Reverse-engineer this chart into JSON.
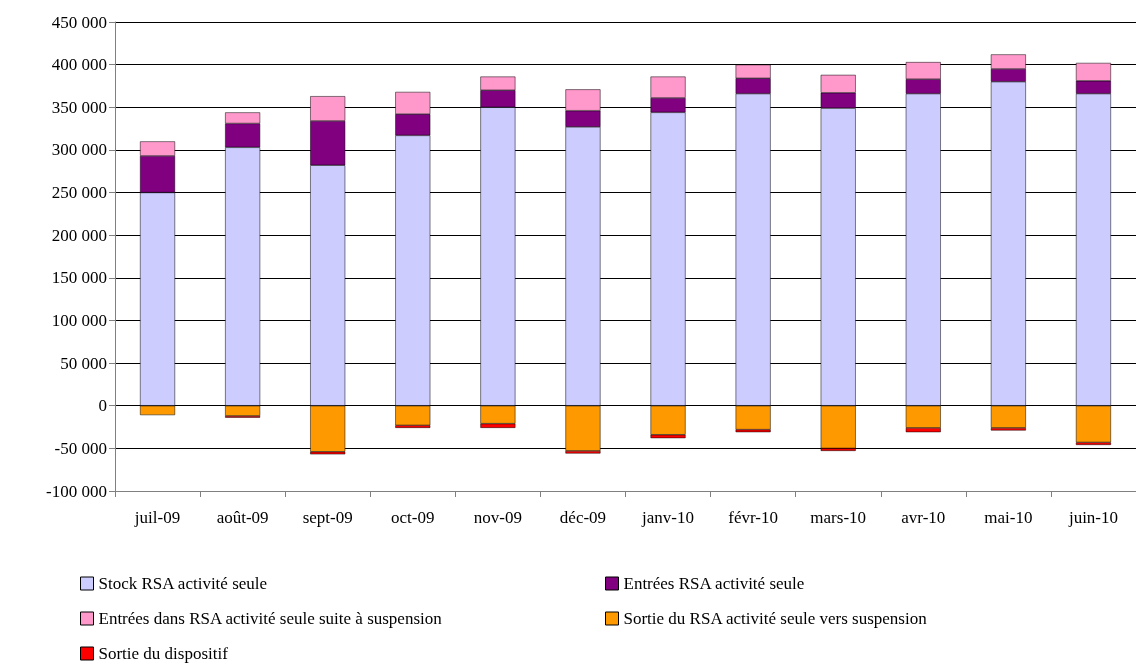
{
  "chart_data": {
    "type": "bar",
    "stacked": true,
    "categories": [
      "juil-09",
      "août-09",
      "sept-09",
      "oct-09",
      "nov-09",
      "déc-09",
      "janv-10",
      "févr-10",
      "mars-10",
      "avr-10",
      "mai-10",
      "juin-10"
    ],
    "series": [
      {
        "name": "Stock RSA activité seule",
        "color": "#ccccff",
        "values": [
          250000,
          303000,
          282000,
          317000,
          350000,
          327000,
          344000,
          366000,
          349000,
          366000,
          380000,
          366000
        ]
      },
      {
        "name": "Entrées RSA activité seule",
        "color": "#800080",
        "values": [
          43000,
          28000,
          52000,
          25000,
          20000,
          19000,
          17000,
          18000,
          18000,
          17000,
          15000,
          15000
        ]
      },
      {
        "name": "Entrées dans RSA activité seule suite à suspension",
        "color": "#ff99cc",
        "values": [
          17000,
          13000,
          29000,
          26000,
          16000,
          25000,
          25000,
          16000,
          21000,
          20000,
          17000,
          21000
        ]
      },
      {
        "name": "Sortie du RSA activité seule vers suspension",
        "color": "#ff9900",
        "values": [
          -11000,
          -12000,
          -54000,
          -23000,
          -21000,
          -53000,
          -34000,
          -28000,
          -50000,
          -26000,
          -26000,
          -43000
        ]
      },
      {
        "name": "Sortie du dispositif",
        "color": "#ff0000",
        "values": [
          null,
          -2000,
          -3000,
          -3000,
          -5000,
          -3000,
          -4000,
          -3000,
          -3000,
          -5000,
          -3000,
          -3000
        ]
      }
    ],
    "ylim": [
      -100000,
      450000
    ],
    "yticks": [
      {
        "value": -100000,
        "label": "-100 000"
      },
      {
        "value": -50000,
        "label": "-50 000"
      },
      {
        "value": 0,
        "label": "0"
      },
      {
        "value": 50000,
        "label": "50 000"
      },
      {
        "value": 100000,
        "label": "100 000"
      },
      {
        "value": 150000,
        "label": "150 000"
      },
      {
        "value": 200000,
        "label": "200 000"
      },
      {
        "value": 250000,
        "label": "250 000"
      },
      {
        "value": 300000,
        "label": "300 000"
      },
      {
        "value": 350000,
        "label": "350 000"
      },
      {
        "value": 400000,
        "label": "400 000"
      },
      {
        "value": 450000,
        "label": "450 000"
      }
    ],
    "grid": "y",
    "legend": "bottom"
  }
}
